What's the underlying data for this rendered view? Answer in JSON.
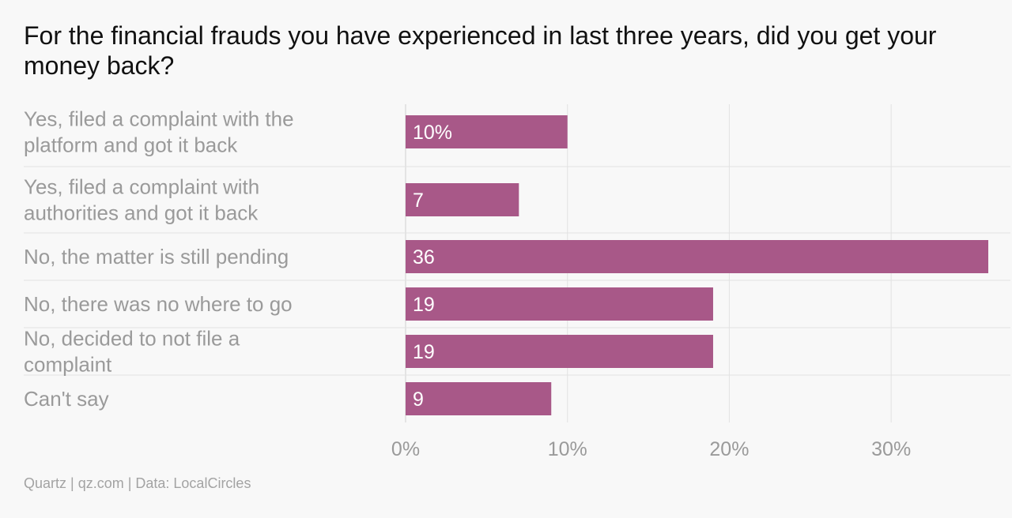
{
  "chart_data": {
    "type": "bar",
    "orientation": "horizontal",
    "title": "For the financial frauds you have experienced in last three years, did you get your money back?",
    "categories": [
      "Yes, filed a complaint with the platform and got it back",
      "Yes, filed a complaint with authorities and got it back",
      "No, the matter is still pending",
      "No, there was no where to go",
      "No, decided to not file a complaint",
      "Can't say"
    ],
    "values": [
      10,
      7,
      36,
      19,
      19,
      9
    ],
    "data_labels": [
      "10%",
      "7",
      "36",
      "19",
      "19",
      "9"
    ],
    "xlim": [
      0,
      36
    ],
    "x_ticks": [
      0,
      10,
      20,
      30
    ],
    "x_tick_labels": [
      "0%",
      "10%",
      "20%",
      "30%"
    ],
    "bar_color": "#a85888",
    "grid": true
  },
  "source": "Quartz | qz.com | Data: LocalCircles"
}
